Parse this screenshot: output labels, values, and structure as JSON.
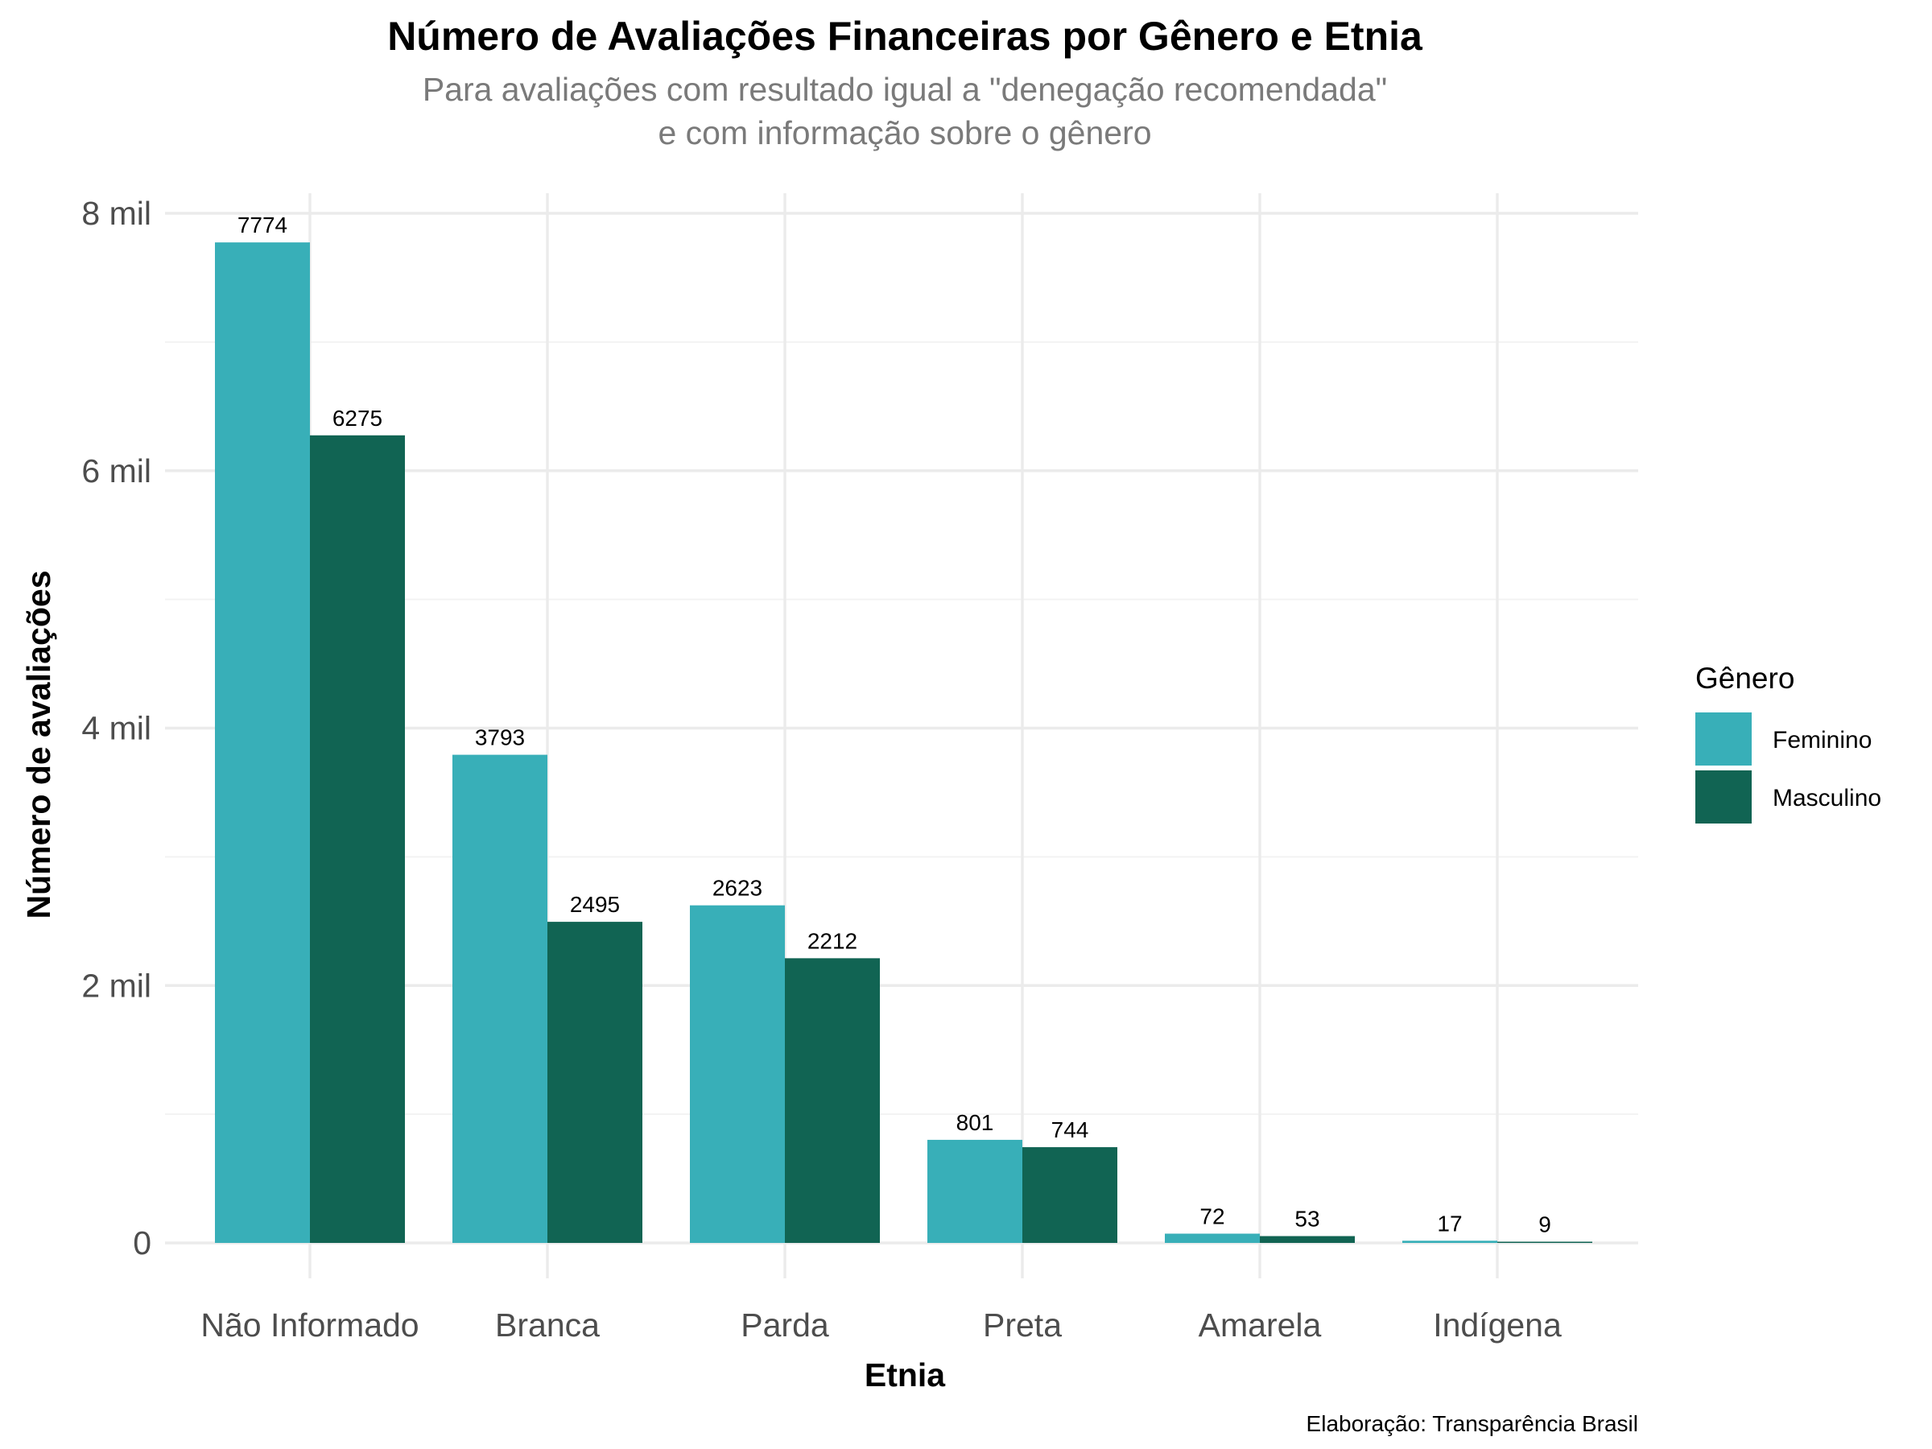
{
  "chart_data": {
    "type": "bar",
    "title": "Número de Avaliações Financeiras por Gênero e Etnia",
    "subtitle_lines": [
      "Para avaliações com resultado igual a \"denegação recomendada\"",
      "e com informação sobre o gênero"
    ],
    "xlabel": "Etnia",
    "ylabel": "Número de avaliações",
    "caption": "Elaboração: Transparência Brasil",
    "categories": [
      "Não Informado",
      "Branca",
      "Parda",
      "Preta",
      "Amarela",
      "Indígena"
    ],
    "series": [
      {
        "name": "Feminino",
        "color": "#38afb8",
        "values": [
          7774,
          3793,
          2623,
          801,
          72,
          17
        ]
      },
      {
        "name": "Masculino",
        "color": "#116453",
        "values": [
          6275,
          2495,
          2212,
          744,
          53,
          9
        ]
      }
    ],
    "ylim": [
      0,
      8000
    ],
    "yticks": [
      0,
      2000,
      4000,
      6000,
      8000
    ],
    "ytick_labels": [
      "0",
      "2 mil",
      "4 mil",
      "6 mil",
      "8 mil"
    ],
    "legend": {
      "title": "Gênero",
      "position": "right"
    },
    "grid": true
  }
}
